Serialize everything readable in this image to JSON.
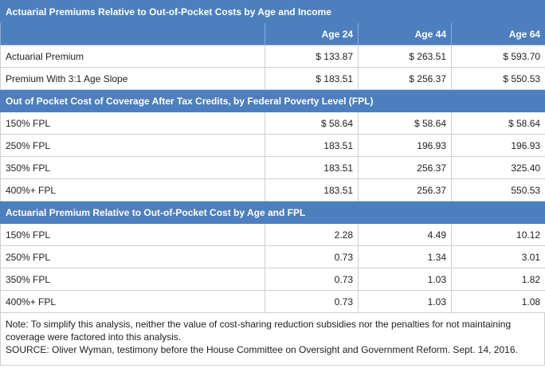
{
  "sections": [
    {
      "title": "Actuarial Premiums Relative to Out-of-Pocket Costs by Age and Income",
      "columns": [
        "Age 24",
        "Age 44",
        "Age 64"
      ],
      "rows": [
        {
          "label": "Actuarial Premium",
          "values": [
            "$ 133.87",
            "$ 263.51",
            "$ 593.70"
          ]
        },
        {
          "label": "Premium With 3:1 Age Slope",
          "values": [
            "$ 183.51",
            "$ 256.37",
            "$ 550.53"
          ]
        }
      ]
    },
    {
      "title": "Out of Pocket Cost of Coverage After Tax Credits, by Federal Poverty Level (FPL)",
      "rows": [
        {
          "label": "150% FPL",
          "values": [
            "$ 58.64",
            "$ 58.64",
            "$ 58.64"
          ]
        },
        {
          "label": "250% FPL",
          "values": [
            "183.51",
            "196.93",
            "196.93"
          ]
        },
        {
          "label": "350% FPL",
          "values": [
            "183.51",
            "256.37",
            "325.40"
          ]
        },
        {
          "label": "400%+ FPL",
          "values": [
            "183.51",
            "256.37",
            "550.53"
          ]
        }
      ]
    },
    {
      "title": "Actuarial Premium Relative to Out-of-Pocket Cost by Age and FPL",
      "rows": [
        {
          "label": "150% FPL",
          "values": [
            "2.28",
            "4.49",
            "10.12"
          ]
        },
        {
          "label": "250% FPL",
          "values": [
            "0.73",
            "1.34",
            "3.01"
          ]
        },
        {
          "label": "350% FPL",
          "values": [
            "0.73",
            "1.03",
            "1.82"
          ]
        },
        {
          "label": "400%+ FPL",
          "values": [
            "0.73",
            "1.03",
            "1.08"
          ]
        }
      ]
    }
  ],
  "note": "Note: To simplify this analysis, neither the value of cost-sharing reduction subsidies nor the penalties for not maintaining coverage were factored into this analysis.",
  "source": "SOURCE: Oliver Wyman, testimony before the House Committee on Oversight and Government Reform. Sept. 14, 2016."
}
